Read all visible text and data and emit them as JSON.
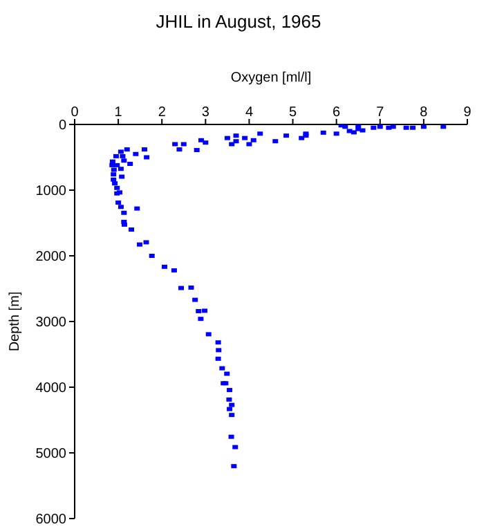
{
  "chart_data": {
    "type": "scatter",
    "title": "JHIL in August, 1965",
    "xlabel": "Oxygen [ml/l]",
    "ylabel": "Depth [m]",
    "xlim": [
      0,
      9
    ],
    "xticks": [
      0,
      1,
      2,
      3,
      4,
      5,
      6,
      7,
      8,
      9
    ],
    "ylim": [
      6000,
      0
    ],
    "yticks": [
      0,
      1000,
      2000,
      3000,
      4000,
      5000,
      6000
    ],
    "marker": "square",
    "grid": false,
    "legend": false,
    "series": [
      {
        "color": "#0000ff",
        "x": [
          6.11,
          6.2,
          6.5,
          6.5,
          6.3,
          6.4,
          6.6,
          6.85,
          7.0,
          7.2,
          7.3,
          7.6,
          7.75,
          8.0,
          8.45,
          6.0,
          5.7,
          5.3,
          5.2,
          5.3,
          4.85,
          4.6,
          4.25,
          4.1,
          4.0,
          3.9,
          3.7,
          3.7,
          3.5,
          3.6,
          3.0,
          2.9,
          2.8,
          2.5,
          2.3,
          2.4,
          1.6,
          1.65,
          1.4,
          1.2,
          1.06,
          0.95,
          1.1,
          1.13,
          1.27,
          0.87,
          0.86,
          0.97,
          1.06,
          0.9,
          0.89,
          1.08,
          0.89,
          0.92,
          0.97,
          1.03,
          0.97,
          1.0,
          1.06,
          1.13,
          1.43,
          1.13,
          1.14,
          1.3,
          1.49,
          1.64,
          1.77,
          2.06,
          2.28,
          2.44,
          2.67,
          2.76,
          2.84,
          2.98,
          2.89,
          3.07,
          3.29,
          3.3,
          3.29,
          3.38,
          3.49,
          3.41,
          3.46,
          3.55,
          3.54,
          3.6,
          3.55,
          3.6,
          3.59,
          3.68,
          3.65
        ],
        "values": [
          14,
          35,
          14,
          70,
          100,
          120,
          90,
          50,
          35,
          50,
          35,
          50,
          50,
          35,
          35,
          140,
          125,
          140,
          207,
          170,
          170,
          255,
          140,
          240,
          300,
          207,
          255,
          170,
          207,
          300,
          276,
          240,
          390,
          300,
          300,
          380,
          380,
          500,
          450,
          380,
          415,
          483,
          483,
          550,
          600,
          565,
          620,
          620,
          676,
          690,
          760,
          795,
          840,
          897,
          966,
          1035,
          1050,
          1190,
          1255,
          1345,
          1280,
          1483,
          1525,
          1600,
          1828,
          1794,
          2000,
          2167,
          2222,
          2490,
          2484,
          2670,
          2842,
          2836,
          2960,
          3194,
          3318,
          3436,
          3567,
          3712,
          3795,
          3940,
          3940,
          4043,
          4188,
          4270,
          4333,
          4423,
          4755,
          4912,
          5202
        ]
      }
    ]
  }
}
